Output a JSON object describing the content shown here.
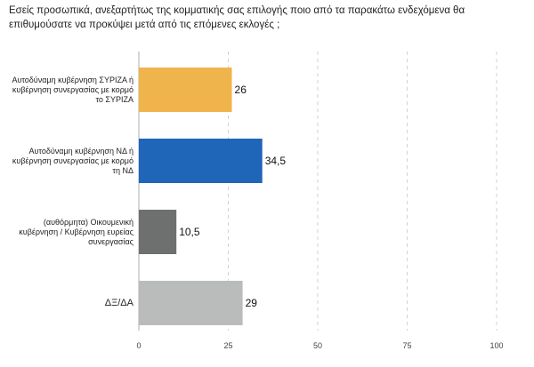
{
  "question": "Εσείς προσωπικά, ανεξαρτήτως της κομματικής σας επιλογής ποιο από τα παρακάτω ενδεχόμενα θα επιθυμούσατε να προκύψει μετά από τις επόμενες εκλογές ;",
  "chart_data": {
    "type": "bar",
    "orientation": "horizontal",
    "categories": [
      [
        "Αυτοδύναμη κυβέρνηση ΣΥΡΙΖΑ ή",
        "κυβέρνηση συνεργασίας με κορμό",
        "το ΣΥΡΙΖΑ"
      ],
      [
        "Αυτοδύναμη κυβέρνηση ΝΔ ή",
        "κυβέρνηση συνεργασίας με κορμό",
        "τη ΝΔ"
      ],
      [
        "(αυθόρμητα) Οικουμενική",
        "κυβέρνηση / Κυβέρνηση ευρείας",
        "συνεργασίας"
      ],
      [
        "ΔΞ/ΔΑ"
      ]
    ],
    "values": [
      26,
      34.5,
      10.5,
      29
    ],
    "value_labels": [
      "26",
      "34,5",
      "10,5",
      "29"
    ],
    "colors": [
      "#f0b44c",
      "#1f65b8",
      "#6d706f",
      "#b9bcbb"
    ],
    "xlim": [
      0,
      100
    ],
    "xticks": [
      0,
      25,
      50,
      75,
      100
    ],
    "grid": "vertical-dashed",
    "legend": "none"
  }
}
